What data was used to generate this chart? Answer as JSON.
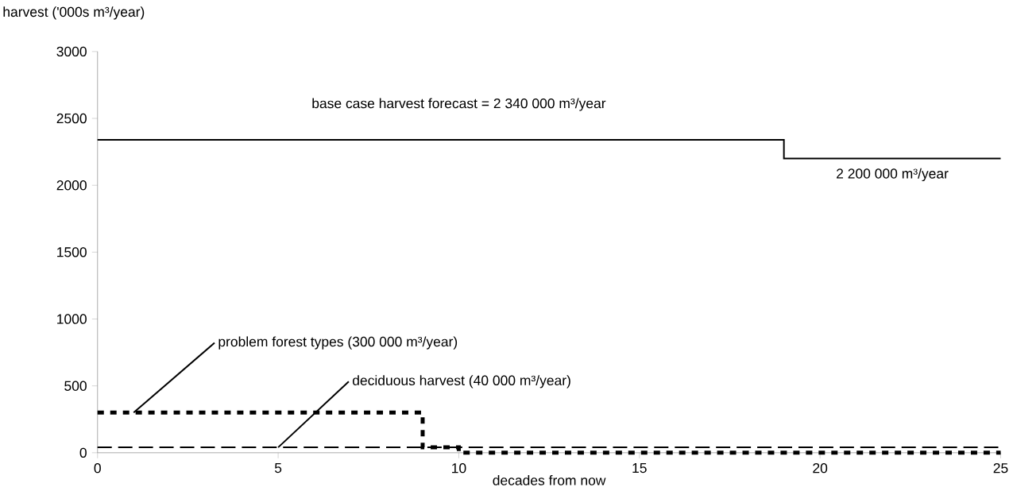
{
  "chart_data": {
    "type": "step",
    "xlabel": "decades from now",
    "ylabel": "harvest ('000s m³/year)",
    "xlim": [
      0,
      25
    ],
    "xticks": [
      0,
      5,
      10,
      15,
      20,
      25
    ],
    "ylim": [
      0,
      3000
    ],
    "yticks": [
      0,
      500,
      1000,
      1500,
      2000,
      2500,
      3000
    ],
    "series": [
      {
        "color": "#000000",
        "line_style": "solid",
        "x": [
          0,
          19,
          25
        ],
        "values": [
          2340,
          2200,
          2200
        ]
      },
      {
        "color": "#000000",
        "line_style": "dotted",
        "x": [
          0,
          9,
          10,
          25
        ],
        "values": [
          300,
          40,
          0,
          0
        ]
      },
      {
        "color": "#000000",
        "line_style": "dashed",
        "x": [
          0,
          25
        ],
        "values": [
          40,
          40
        ]
      }
    ],
    "annotations": [
      {
        "text": "base case harvest forecast = 2 340 000 m³/year",
        "x": 10,
        "y": 2340
      },
      {
        "text": "2 200 000 m³/year",
        "x": 22,
        "y": 2200
      },
      {
        "text": "problem forest types (300 000 m³/year)",
        "x": 1,
        "y": 300
      },
      {
        "text": "deciduous harvest (40 000 m³/year)",
        "x": 5,
        "y": 40
      }
    ],
    "marker": "none",
    "grid": false
  }
}
